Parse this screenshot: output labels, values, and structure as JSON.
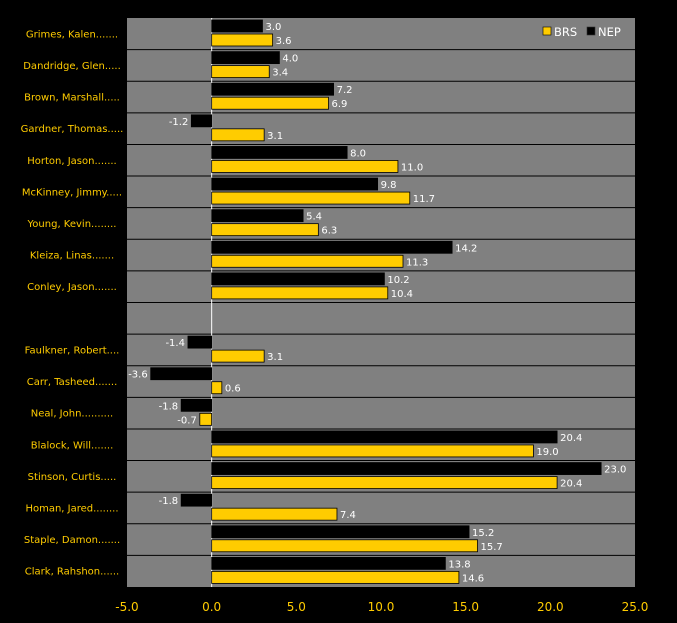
{
  "chart_data": {
    "type": "bar",
    "orientation": "horizontal",
    "title": "",
    "xlabel": "",
    "ylabel": "",
    "xlim": [
      -5,
      25
    ],
    "x_ticks": [
      "-5.0",
      "0.0",
      "5.0",
      "10.0",
      "15.0",
      "20.0",
      "25.0"
    ],
    "grid": true,
    "legend_position": "top-right",
    "categories": [
      "Grimes, Kalen.......",
      "Dandridge, Glen.....",
      "Brown, Marshall.....",
      "Gardner, Thomas.....",
      "Horton, Jason.......",
      "McKinney, Jimmy.....",
      "Young, Kevin........",
      "Kleiza, Linas.......",
      "Conley, Jason.......",
      "",
      "Faulkner, Robert....",
      "Carr, Tasheed.......",
      "Neal, John..........",
      "Blalock, Will.......",
      "Stinson, Curtis.....",
      "Homan, Jared........",
      "Staple, Damon.......",
      "Clark, Rahshon......"
    ],
    "series": [
      {
        "name": "NEP",
        "color": "#000000",
        "values": [
          3.0,
          4.0,
          7.2,
          -1.2,
          8.0,
          9.8,
          5.4,
          14.2,
          10.2,
          null,
          -1.4,
          -3.6,
          -1.8,
          20.4,
          23.0,
          -1.8,
          15.2,
          13.8
        ]
      },
      {
        "name": "BRS",
        "color": "#FFCC00",
        "values": [
          3.6,
          3.4,
          6.9,
          3.1,
          11.0,
          11.7,
          6.3,
          11.3,
          10.4,
          null,
          3.1,
          0.6,
          -0.7,
          19.0,
          20.4,
          7.4,
          15.7,
          14.6
        ]
      }
    ],
    "colors": {
      "background": "#000000",
      "plot_area": "#808080",
      "text": "#FFCC00",
      "value_text": "#FFFFFF"
    }
  }
}
